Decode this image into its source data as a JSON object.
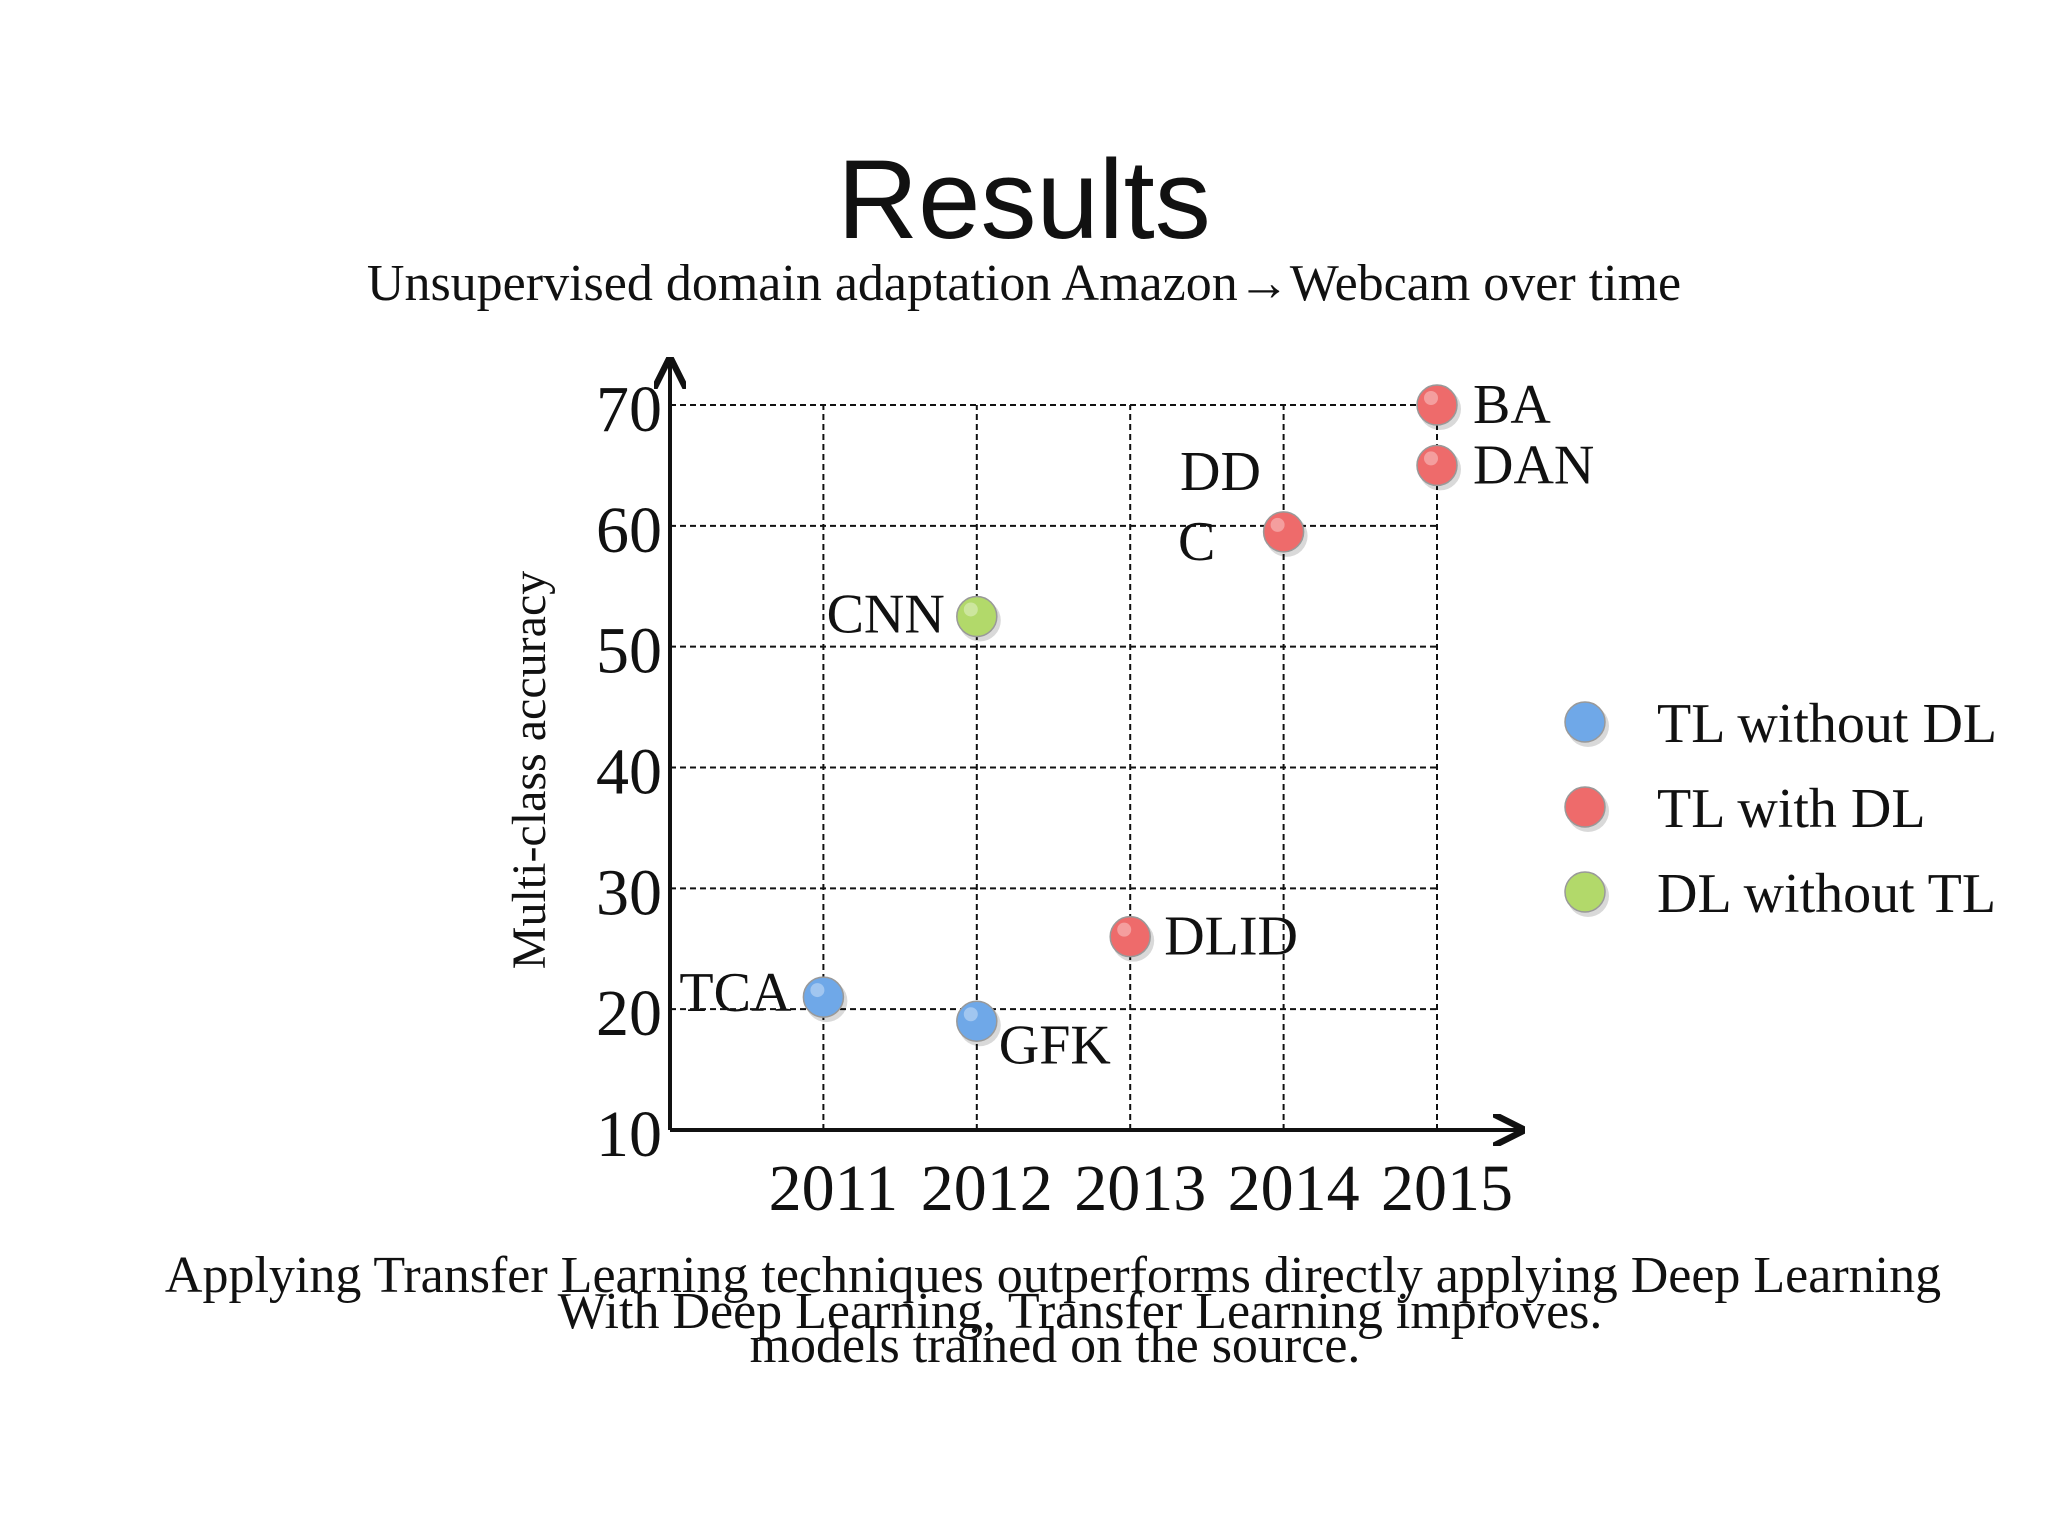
{
  "slide": {
    "title": "Results",
    "subtitle": "Unsupervised domain adaptation Amazon→Webcam over time",
    "caption_lines": [
      "Applying Transfer Learning techniques outperforms directly applying Deep Learning",
      "With Deep Learning, Transfer Learning improves.",
      "models trained on the source."
    ]
  },
  "chart_data": {
    "type": "scatter",
    "title": "",
    "xlabel": "",
    "ylabel": "Multi-class accuracy",
    "x_ticks": [
      "2011",
      "2012",
      "2013",
      "2014",
      "2015"
    ],
    "y_ticks": [
      "10",
      "20",
      "30",
      "40",
      "50",
      "60",
      "70"
    ],
    "xlim": [
      2010,
      2015
    ],
    "ylim": [
      10,
      70
    ],
    "grid": true,
    "legend_position": "right",
    "series": [
      {
        "name": "TL without DL",
        "color": "#6fa8e8",
        "points": [
          {
            "label": "TCA",
            "x": 2011,
            "y": 21
          },
          {
            "label": "GFK",
            "x": 2012,
            "y": 19
          }
        ]
      },
      {
        "name": "TL with DL",
        "color": "#ee6b6b",
        "points": [
          {
            "label": "DLID",
            "x": 2013,
            "y": 26
          },
          {
            "label": "DD C",
            "x": 2014,
            "y": 59.5
          },
          {
            "label": "BA",
            "x": 2015,
            "y": 70
          },
          {
            "label": "DAN",
            "x": 2015,
            "y": 65
          }
        ]
      },
      {
        "name": "DL without TL",
        "color": "#b2d96a",
        "points": [
          {
            "label": "CNN",
            "x": 2012,
            "y": 52.5
          }
        ]
      }
    ]
  }
}
